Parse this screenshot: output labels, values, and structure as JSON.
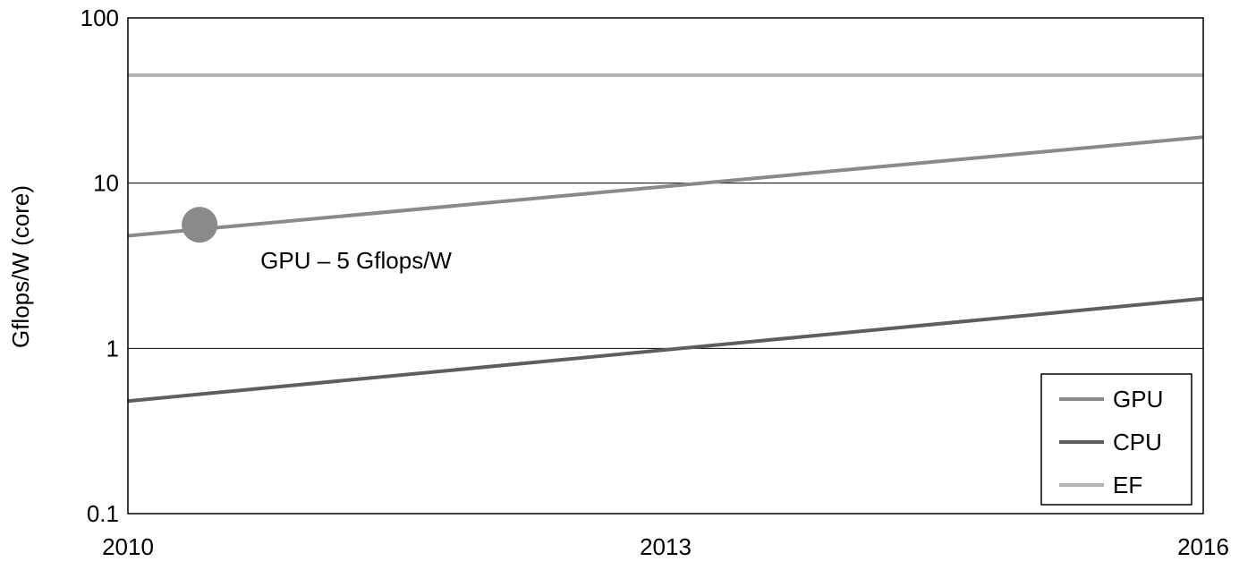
{
  "chart_data": {
    "type": "line",
    "ylabel": "Gflops/W (core)",
    "xlabel": "",
    "yscale": "log",
    "ylim": [
      0.1,
      100
    ],
    "xlim": [
      2010,
      2016
    ],
    "yticks": [
      0.1,
      1,
      10,
      100
    ],
    "ytick_labels": [
      "0.1",
      "1",
      "10",
      "100"
    ],
    "xticks": [
      2010,
      2013,
      2016
    ],
    "xtick_labels": [
      "2010",
      "2013",
      "2016"
    ],
    "grid": "horizontal",
    "legend_position": "bottom-right",
    "series": [
      {
        "name": "GPU",
        "color": "#8a8a8a",
        "x": [
          2010,
          2016
        ],
        "y": [
          4.8,
          19
        ]
      },
      {
        "name": "CPU",
        "color": "#5e5e5e",
        "x": [
          2010,
          2016
        ],
        "y": [
          0.48,
          2.0
        ]
      },
      {
        "name": "EF",
        "color": "#b3b3b3",
        "x": [
          2010,
          2016
        ],
        "y": [
          45,
          45
        ]
      }
    ],
    "annotations": [
      {
        "text": "GPU – 5 Gflops/W",
        "x": 2010.4,
        "y": 5.6,
        "marker": "circle",
        "color": "#8a8a8a"
      }
    ]
  }
}
